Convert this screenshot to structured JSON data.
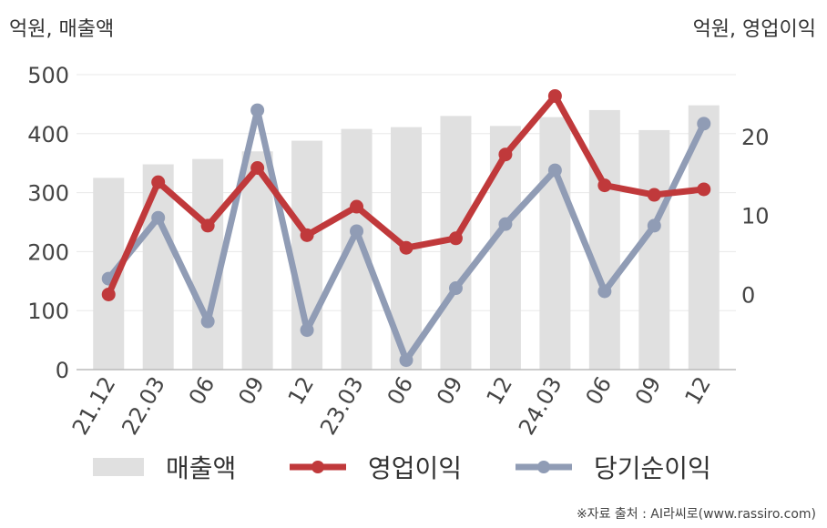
{
  "units": {
    "left": "억원, 매출액",
    "right": "억원, 영업이익"
  },
  "source": "※자료 출처 : AI라씨로(www.rassiro.com)",
  "chart_data": {
    "type": "bar",
    "categories": [
      "21.12",
      "22.03",
      "06",
      "09",
      "12",
      "23.03",
      "06",
      "09",
      "12",
      "24.03",
      "06",
      "09",
      "12"
    ],
    "y_left": {
      "lim": [
        0,
        500
      ],
      "ticks": [
        0,
        100,
        200,
        300,
        400,
        500
      ]
    },
    "y_right": {
      "lim": [
        -9.5,
        27.8
      ],
      "ticks": [
        0,
        10,
        20
      ]
    },
    "grid": true,
    "legend_position": "bottom",
    "series": [
      {
        "name": "매출액",
        "type": "bar",
        "axis": "left",
        "color": "#e0e0e0",
        "values": [
          325,
          348,
          357,
          370,
          388,
          408,
          411,
          430,
          413,
          428,
          440,
          406,
          448
        ]
      },
      {
        "name": "영업이익",
        "type": "line",
        "axis": "right",
        "color": "#c0393b",
        "values": [
          0.0,
          14.2,
          8.7,
          16.0,
          7.5,
          11.1,
          5.9,
          7.1,
          17.7,
          25.1,
          13.8,
          12.6,
          13.3
        ]
      },
      {
        "name": "당기순이익",
        "type": "line",
        "axis": "right",
        "color": "#909cb5",
        "values": [
          2.0,
          9.7,
          -3.4,
          23.3,
          -4.5,
          8.0,
          -8.3,
          0.8,
          8.9,
          15.7,
          0.4,
          8.7,
          21.6
        ]
      }
    ]
  }
}
